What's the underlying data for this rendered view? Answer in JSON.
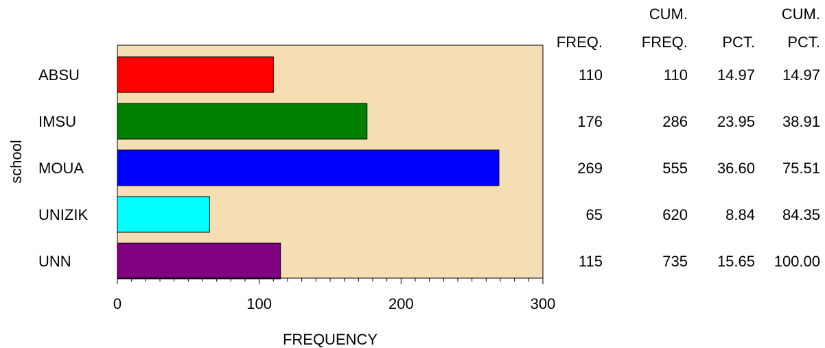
{
  "chart_data": {
    "type": "bar",
    "orientation": "horizontal",
    "categories": [
      "ABSU",
      "IMSU",
      "MOUA",
      "UNIZIK",
      "UNN"
    ],
    "values": [
      110,
      176,
      269,
      65,
      115
    ],
    "colors": [
      "#ff0000",
      "#008000",
      "#0000ff",
      "#00ffff",
      "#800080"
    ],
    "plot_background": "#f5deb3",
    "xlabel": "FREQUENCY",
    "ylabel": "school",
    "xlim": [
      0,
      300
    ],
    "xticks": [
      "0",
      "100",
      "200",
      "300"
    ],
    "grid": false,
    "stats_table": {
      "headers": [
        {
          "line1": "",
          "line2": "FREQ."
        },
        {
          "line1": "CUM.",
          "line2": "FREQ."
        },
        {
          "line1": "",
          "line2": "PCT."
        },
        {
          "line1": "CUM.",
          "line2": "PCT."
        }
      ],
      "rows": [
        [
          "110",
          "110",
          "14.97",
          "14.97"
        ],
        [
          "176",
          "286",
          "23.95",
          "38.91"
        ],
        [
          "269",
          "555",
          "36.60",
          "75.51"
        ],
        [
          "65",
          "620",
          "8.84",
          "84.35"
        ],
        [
          "115",
          "735",
          "15.65",
          "100.00"
        ]
      ]
    }
  }
}
